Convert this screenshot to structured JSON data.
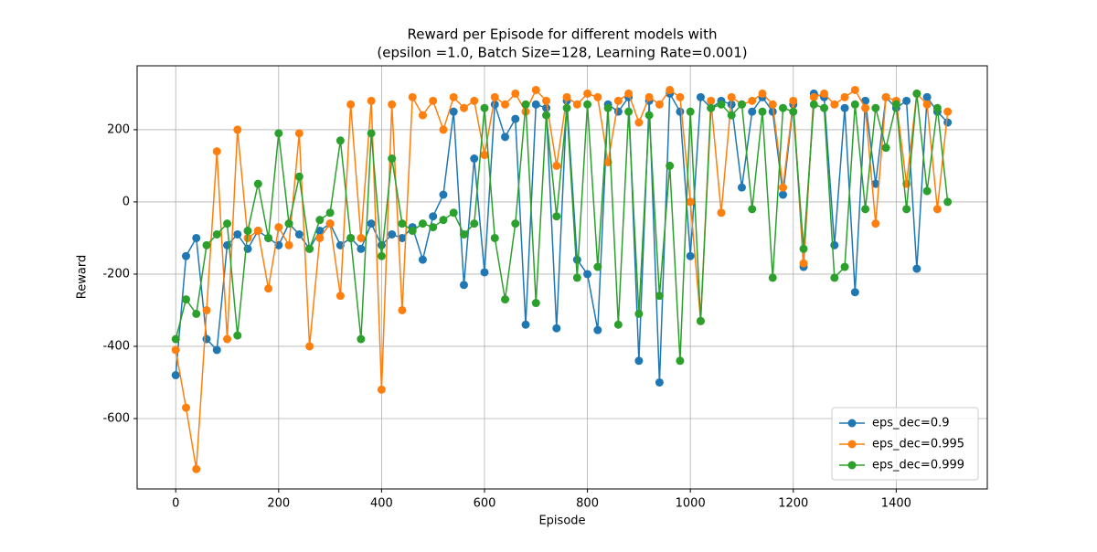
{
  "chart_data": {
    "type": "line",
    "title": [
      "Reward per Episode for different models with",
      "(epsilon =1.0, Batch Size=128, Learning Rate=0.001)"
    ],
    "x_label": "Episode",
    "y_label": "Reward",
    "x": [
      0,
      20,
      40,
      60,
      80,
      100,
      120,
      140,
      160,
      180,
      200,
      220,
      240,
      260,
      280,
      300,
      320,
      340,
      360,
      380,
      400,
      420,
      440,
      460,
      480,
      500,
      520,
      540,
      560,
      580,
      600,
      620,
      640,
      660,
      680,
      700,
      720,
      740,
      760,
      780,
      800,
      820,
      840,
      860,
      880,
      900,
      920,
      940,
      960,
      980,
      1000,
      1020,
      1040,
      1060,
      1080,
      1100,
      1120,
      1140,
      1160,
      1180,
      1200,
      1220,
      1240,
      1260,
      1280,
      1300,
      1320,
      1340,
      1360,
      1380,
      1400,
      1420,
      1440,
      1460,
      1480,
      1500
    ],
    "series": [
      {
        "name": "eps_dec=0.9",
        "color": "#1f77b4",
        "values": [
          -480,
          -150,
          -100,
          -380,
          -410,
          -120,
          -90,
          -130,
          -80,
          -100,
          -120,
          -60,
          -90,
          -130,
          -80,
          -60,
          -120,
          -100,
          -130,
          -60,
          -120,
          -90,
          -100,
          -70,
          -160,
          -40,
          20,
          250,
          -230,
          120,
          -195,
          270,
          180,
          230,
          -340,
          270,
          260,
          -350,
          280,
          -160,
          -200,
          -355,
          270,
          250,
          290,
          -440,
          280,
          -500,
          300,
          250,
          -150,
          290,
          260,
          280,
          270,
          40,
          250,
          290,
          250,
          20,
          270,
          -180,
          300,
          290,
          -120,
          260,
          -250,
          280,
          50,
          290,
          260,
          280,
          -185,
          290,
          250,
          220
        ]
      },
      {
        "name": "eps_dec=0.995",
        "color": "#ff7f0e",
        "values": [
          -410,
          -570,
          -740,
          -300,
          140,
          -380,
          200,
          -100,
          -80,
          -240,
          -70,
          -120,
          190,
          -400,
          -100,
          -60,
          -260,
          270,
          -100,
          280,
          -520,
          270,
          -300,
          290,
          240,
          280,
          200,
          290,
          260,
          280,
          130,
          290,
          270,
          300,
          250,
          310,
          280,
          100,
          290,
          270,
          300,
          290,
          110,
          280,
          300,
          220,
          290,
          270,
          310,
          290,
          0,
          -330,
          280,
          -30,
          290,
          270,
          280,
          300,
          270,
          40,
          280,
          -170,
          290,
          300,
          270,
          290,
          310,
          260,
          -60,
          290,
          280,
          50,
          300,
          270,
          -20,
          250
        ]
      },
      {
        "name": "eps_dec=0.999",
        "color": "#2ca02c",
        "values": [
          -380,
          -270,
          -310,
          -120,
          -90,
          -60,
          -370,
          -80,
          50,
          -100,
          190,
          -60,
          70,
          -130,
          -50,
          -30,
          170,
          -100,
          -380,
          190,
          -150,
          120,
          -60,
          -80,
          -60,
          -70,
          -50,
          -30,
          -90,
          -60,
          260,
          -100,
          -270,
          -60,
          270,
          -280,
          240,
          -40,
          260,
          -210,
          270,
          -180,
          260,
          -340,
          250,
          -310,
          240,
          -260,
          100,
          -440,
          250,
          -330,
          260,
          270,
          240,
          270,
          -20,
          250,
          -210,
          260,
          250,
          -130,
          270,
          260,
          -210,
          -180,
          270,
          -20,
          260,
          150,
          270,
          -20,
          300,
          30,
          260,
          0
        ]
      }
    ],
    "xlim": [
      -75,
      1577
    ],
    "ylim": [
      -795,
      377
    ],
    "xticks": [
      0,
      200,
      400,
      600,
      800,
      1000,
      1200,
      1400
    ],
    "yticks": [
      -600,
      -400,
      -200,
      0,
      200
    ],
    "grid": true,
    "legend": "lower right"
  }
}
